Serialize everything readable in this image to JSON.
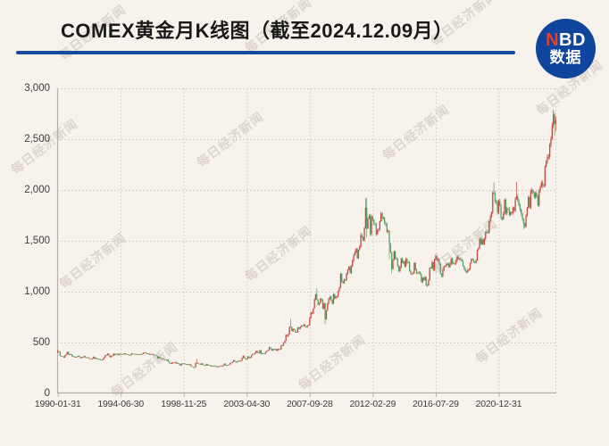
{
  "header": {
    "title": "COMEX黄金月K线图（截至2024.12.09月）",
    "divider_color": "#154a9e"
  },
  "logo": {
    "line1_red": "N",
    "line1_white": "BD",
    "line2": "数据",
    "bg_color": "#0f459c",
    "accent_color": "#e8402e"
  },
  "watermark": {
    "text": "每日经济新闻"
  },
  "chart_data": {
    "type": "candlestick",
    "title": "COMEX黄金月K线图（截至2024.12.09月）",
    "xlabel": "",
    "ylabel": "",
    "ylim": [
      0,
      3000
    ],
    "grid": "dotted",
    "legend": "none",
    "up_color": "#c5483d",
    "down_color": "#549e64",
    "axis_color": "#b3afa6",
    "grid_color": "#ccc7bd",
    "y_tick_values": [
      0,
      500,
      1000,
      1500,
      2000,
      2500,
      3000
    ],
    "y_tick_labels": [
      "0",
      "500",
      "1,000",
      "1,500",
      "2,000",
      "2,500",
      "3,000"
    ],
    "x_tick_labels": [
      "1990-01-31",
      "1994-06-30",
      "1998-11-25",
      "2003-04-30",
      "2007-09-28",
      "2012-02-29",
      "2016-07-29",
      "2020-12-31"
    ],
    "x_tick_month_index": [
      0,
      53,
      106,
      159,
      212,
      265,
      318,
      371
    ],
    "start_month": "1990-01",
    "end_month": "2024-12",
    "months": 420,
    "first_open": 400,
    "closes": [
      415,
      408,
      368,
      367,
      363,
      352,
      372,
      388,
      408,
      380,
      384,
      386,
      366,
      363,
      355,
      357,
      360,
      368,
      362,
      347,
      354,
      357,
      366,
      353,
      354,
      353,
      344,
      337,
      337,
      343,
      358,
      340,
      349,
      340,
      335,
      333,
      329,
      327,
      337,
      354,
      375,
      378,
      392,
      371,
      355,
      369,
      370,
      391,
      378,
      382,
      390,
      377,
      387,
      386,
      385,
      386,
      394,
      384,
      384,
      383,
      375,
      376,
      392,
      390,
      385,
      387,
      383,
      382,
      384,
      383,
      387,
      387,
      400,
      404,
      396,
      391,
      391,
      382,
      385,
      387,
      379,
      378,
      371,
      369,
      345,
      359,
      348,
      340,
      345,
      334,
      326,
      325,
      333,
      311,
      296,
      290,
      304,
      297,
      301,
      308,
      293,
      296,
      286,
      273,
      293,
      292,
      294,
      288,
      285,
      287,
      280,
      286,
      268,
      261,
      255,
      256,
      299,
      300,
      291,
      290,
      283,
      294,
      278,
      275,
      272,
      289,
      276,
      277,
      274,
      264,
      269,
      272,
      264,
      267,
      258,
      264,
      267,
      270,
      266,
      274,
      293,
      278,
      275,
      277,
      282,
      297,
      301,
      308,
      327,
      313,
      304,
      313,
      323,
      317,
      319,
      348,
      368,
      350,
      336,
      339,
      362,
      346,
      355,
      376,
      388,
      386,
      398,
      417,
      400,
      396,
      424,
      388,
      394,
      392,
      391,
      410,
      420,
      425,
      453,
      438,
      422,
      435,
      428,
      435,
      418,
      437,
      429,
      433,
      473,
      470,
      495,
      517,
      575,
      561,
      582,
      654,
      653,
      613,
      634,
      623,
      599,
      604,
      647,
      636,
      651,
      665,
      663,
      677,
      659,
      651,
      666,
      673,
      743,
      795,
      783,
      834,
      923,
      975,
      921,
      871,
      885,
      930,
      918,
      833,
      884,
      730,
      816,
      884,
      928,
      952,
      916,
      883,
      975,
      934,
      953,
      953,
      1008,
      1040,
      1175,
      1096,
      1083,
      1118,
      1113,
      1180,
      1215,
      1244,
      1181,
      1248,
      1307,
      1357,
      1386,
      1421,
      1327,
      1411,
      1439,
      1556,
      1536,
      1502,
      1628,
      1826,
      1620,
      1722,
      1746,
      1566,
      1737,
      1711,
      1672,
      1664,
      1564,
      1604,
      1615,
      1692,
      1771,
      1719,
      1726,
      1676,
      1661,
      1588,
      1598,
      1472,
      1387,
      1224,
      1313,
      1396,
      1327,
      1323,
      1253,
      1202,
      1244,
      1326,
      1283,
      1295,
      1250,
      1322,
      1285,
      1287,
      1211,
      1173,
      1175,
      1184,
      1283,
      1213,
      1183,
      1184,
      1190,
      1172,
      1095,
      1135,
      1114,
      1142,
      1065,
      1060,
      1116,
      1234,
      1233,
      1290,
      1215,
      1321,
      1349,
      1311,
      1317,
      1273,
      1174,
      1152,
      1211,
      1248,
      1249,
      1268,
      1272,
      1242,
      1269,
      1322,
      1283,
      1271,
      1275,
      1303,
      1345,
      1318,
      1325,
      1315,
      1300,
      1251,
      1224,
      1201,
      1192,
      1215,
      1220,
      1281,
      1321,
      1313,
      1292,
      1283,
      1306,
      1410,
      1426,
      1520,
      1466,
      1513,
      1464,
      1523,
      1589,
      1586,
      1583,
      1694,
      1737,
      1781,
      1976,
      1967,
      1886,
      1879,
      1777,
      1895,
      1847,
      1729,
      1714,
      1768,
      1905,
      1770,
      1814,
      1812,
      1757,
      1784,
      1775,
      1829,
      1797,
      1909,
      1937,
      1897,
      1848,
      1807,
      1766,
      1716,
      1672,
      1641,
      1753,
      1826,
      1928,
      1827,
      1986,
      1999,
      1964,
      1929,
      1971,
      1940,
      1848,
      1994,
      2036,
      2072,
      2040,
      2044,
      2230,
      2286,
      2327,
      2327,
      2448,
      2503,
      2635,
      2744,
      2650,
      2690
    ],
    "extremes": {
      "0": [
        427,
        397
      ],
      "117": [
        339,
        null
      ],
      "196": [
        732,
        null
      ],
      "218": [
        1034,
        null
      ],
      "225": [
        null,
        681
      ],
      "259": [
        1918,
        null
      ],
      "260": [
        1924,
        1535
      ],
      "279": [
        null,
        1321
      ],
      "281": [
        null,
        1180
      ],
      "311": [
        null,
        1046
      ],
      "367": [
        2075,
        null
      ],
      "386": [
        2079,
        null
      ],
      "392": [
        null,
        1615
      ],
      "417": [
        2790,
        null
      ],
      "418": [
        null,
        2537
      ],
      "419": [
        2726,
        2583
      ]
    }
  }
}
